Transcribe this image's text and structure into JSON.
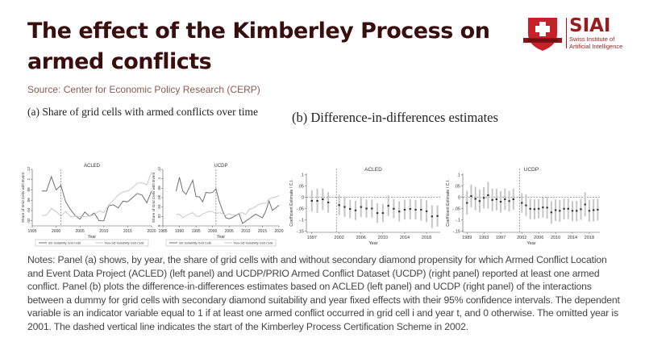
{
  "header": {
    "title": "The effect of the Kimberley Process on armed conflicts",
    "source": "Source: Center for Economic Policy Research (CERP)"
  },
  "logo": {
    "name": "SIAI",
    "subtitle_line1": "Swiss Institute of",
    "subtitle_line2": "Artificial Intelligence",
    "brand_color": "#9b1c1f"
  },
  "panels": {
    "a_title": "(a) Share of grid cells with armed conflicts over time",
    "b_title": "(b) Difference-in-differences estimates"
  },
  "notes": "Notes: Panel (a) shows, by year, the share of grid cells with and without secondary diamond propensity for which Armed Conflict Location and Event Data Project (ACLED) (left panel) and UCDP/PRIO Armed Conflict Dataset (UCDP) (right panel) reported at least one armed conflict. Panel (b) plots the difference-in-differences estimates based on ACLED (left panel) and UCDP (right panel) of the interactions between a dummy for grid cells with secondary diamond suitability and year fixed effects with their 95% confidence intervals. The dependent variable is an indicator variable equal to 1 if at least one armed conflict occurred in grid cell i and year t, and 0 otherwise. The omitted year is 2001. The dashed vertical line indicates the start of the Kimberley Process Certification Scheme in 2002.",
  "chart_data": [
    {
      "id": "acled_share",
      "type": "line",
      "title": "ACLED",
      "xlabel": "Year",
      "ylabel": "Share of Grid Cells with Event",
      "xlim": [
        1995,
        2020
      ],
      "ylim": [
        0.01,
        0.12
      ],
      "xticks": [
        1995,
        2000,
        2005,
        2010,
        2015,
        2020
      ],
      "yticks": [
        ".02",
        ".04",
        ".06",
        ".08",
        ".1",
        ".12"
      ],
      "ytick_values": [
        0.02,
        0.04,
        0.06,
        0.08,
        0.1,
        0.12
      ],
      "vline": 2001,
      "legend": "bottom",
      "series": [
        {
          "name": "SD Suitability Grid Cells",
          "color": "#707070",
          "x": [
            1997,
            1998,
            1999,
            2000,
            2001,
            2002,
            2003,
            2004,
            2005,
            2006,
            2007,
            2008,
            2009,
            2010,
            2011,
            2012,
            2013,
            2014,
            2015,
            2016,
            2017,
            2018,
            2019,
            2020
          ],
          "values": [
            0.078,
            0.078,
            0.106,
            0.08,
            0.089,
            0.057,
            0.042,
            0.03,
            0.023,
            0.037,
            0.029,
            0.035,
            0.02,
            0.02,
            0.049,
            0.051,
            0.045,
            0.058,
            0.057,
            0.065,
            0.073,
            0.07,
            0.055,
            0.078
          ]
        },
        {
          "name": "Non-SD Suitability Grid Cells",
          "color": "#c8c8c8",
          "x": [
            1997,
            1998,
            1999,
            2000,
            2001,
            2002,
            2003,
            2004,
            2005,
            2006,
            2007,
            2008,
            2009,
            2010,
            2011,
            2012,
            2013,
            2014,
            2015,
            2016,
            2017,
            2018,
            2019,
            2020
          ],
          "values": [
            0.03,
            0.031,
            0.044,
            0.038,
            0.029,
            0.038,
            0.028,
            0.029,
            0.028,
            0.028,
            0.029,
            0.032,
            0.039,
            0.036,
            0.05,
            0.06,
            0.07,
            0.076,
            0.078,
            0.084,
            0.093,
            0.094,
            0.09,
            0.114
          ]
        }
      ]
    },
    {
      "id": "ucdp_share",
      "type": "line",
      "title": "UCDP",
      "xlabel": "Year",
      "ylabel": "Share of Grid Cells with Event",
      "xlim": [
        1985,
        2020
      ],
      "ylim": [
        0,
        0.12
      ],
      "xticks": [
        1985,
        1990,
        1995,
        2000,
        2005,
        2010,
        2015,
        2020
      ],
      "yticks": [
        "0",
        ".02",
        ".04",
        ".06",
        ".08",
        ".1",
        ".12"
      ],
      "ytick_values": [
        0,
        0.02,
        0.04,
        0.06,
        0.08,
        0.1,
        0.12
      ],
      "vline": 2001,
      "legend": "bottom",
      "series": [
        {
          "name": "SD Suitability Grid Cells",
          "color": "#707070",
          "x": [
            1989,
            1990,
            1991,
            1992,
            1993,
            1994,
            1995,
            1996,
            1997,
            1998,
            1999,
            2000,
            2001,
            2002,
            2003,
            2004,
            2005,
            2006,
            2007,
            2008,
            2009,
            2010,
            2011,
            2012,
            2013,
            2014,
            2015,
            2016,
            2017,
            2018,
            2019,
            2020
          ],
          "values": [
            0.074,
            0.103,
            0.074,
            0.067,
            0.082,
            0.097,
            0.062,
            0.062,
            0.051,
            0.071,
            0.07,
            0.071,
            0.079,
            0.052,
            0.032,
            0.017,
            0.015,
            0.018,
            0.022,
            0.026,
            0.005,
            0.01,
            0.015,
            0.02,
            0.025,
            0.021,
            0.017,
            0.031,
            0.053,
            0.033,
            0.038,
            0.044
          ]
        },
        {
          "name": "Non-SD Suitability Grid Cells",
          "color": "#c8c8c8",
          "x": [
            1989,
            1990,
            1991,
            1992,
            1993,
            1994,
            1995,
            1996,
            1997,
            1998,
            1999,
            2000,
            2001,
            2002,
            2003,
            2004,
            2005,
            2006,
            2007,
            2008,
            2009,
            2010,
            2011,
            2012,
            2013,
            2014,
            2015,
            2016,
            2017,
            2018,
            2019,
            2020
          ],
          "values": [
            0.024,
            0.025,
            0.017,
            0.022,
            0.025,
            0.028,
            0.021,
            0.02,
            0.025,
            0.028,
            0.031,
            0.03,
            0.026,
            0.028,
            0.026,
            0.022,
            0.026,
            0.023,
            0.023,
            0.027,
            0.028,
            0.024,
            0.035,
            0.037,
            0.041,
            0.046,
            0.048,
            0.048,
            0.057,
            0.06,
            0.061,
            0.065
          ]
        }
      ]
    },
    {
      "id": "acled_did",
      "type": "scatter",
      "title": "ACLED",
      "xlabel": "Year",
      "ylabel": "Coefficient Estimate / C.I.",
      "xlim": [
        1996,
        2020.5
      ],
      "ylim": [
        -0.155,
        0.105
      ],
      "xticks": [
        1997,
        2002,
        2006,
        2010,
        2014,
        2018
      ],
      "yticks": [
        "-.15",
        "-.1",
        "-.05",
        "0",
        ".05",
        ".1"
      ],
      "ytick_values": [
        -0.15,
        -0.1,
        -0.05,
        0,
        0.05,
        0.1
      ],
      "vline": 2001.5,
      "hline": 0,
      "x": [
        1997,
        1998,
        1999,
        2000,
        2002,
        2003,
        2004,
        2005,
        2006,
        2007,
        2008,
        2009,
        2010,
        2011,
        2012,
        2013,
        2014,
        2015,
        2016,
        2017,
        2018,
        2019,
        2020
      ],
      "estimates": [
        -0.016,
        -0.016,
        -0.009,
        -0.023,
        -0.035,
        -0.043,
        -0.052,
        -0.058,
        -0.043,
        -0.05,
        -0.05,
        -0.07,
        -0.07,
        -0.038,
        -0.051,
        -0.063,
        -0.055,
        -0.052,
        -0.055,
        -0.055,
        -0.062,
        -0.085,
        -0.083
      ],
      "ci_low": [
        -0.063,
        -0.07,
        -0.057,
        -0.068,
        -0.08,
        -0.087,
        -0.093,
        -0.1,
        -0.087,
        -0.09,
        -0.09,
        -0.113,
        -0.11,
        -0.083,
        -0.093,
        -0.107,
        -0.098,
        -0.097,
        -0.098,
        -0.103,
        -0.11,
        -0.137,
        -0.13
      ],
      "ci_high": [
        0.031,
        0.038,
        0.039,
        0.023,
        0.011,
        0.003,
        -0.011,
        -0.016,
        0.003,
        -0.01,
        -0.01,
        -0.027,
        -0.03,
        0.008,
        -0.009,
        -0.018,
        -0.011,
        -0.008,
        -0.012,
        -0.007,
        -0.013,
        -0.035,
        -0.036
      ]
    },
    {
      "id": "ucdp_did",
      "type": "scatter",
      "title": "UCDP",
      "xlabel": "Year",
      "ylabel": "Coefficient Estimate / C.I.",
      "xlim": [
        1988,
        2020.5
      ],
      "ylim": [
        -0.155,
        0.105
      ],
      "xticks": [
        1989,
        1993,
        1997,
        2002,
        2006,
        2010,
        2014,
        2018
      ],
      "yticks": [
        "-.15",
        "-.1",
        "-.05",
        "0",
        ".05",
        ".1"
      ],
      "ytick_values": [
        -0.15,
        -0.1,
        -0.05,
        0,
        0.05,
        0.1
      ],
      "vline": 2001.5,
      "hline": 0,
      "x": [
        1989,
        1990,
        1991,
        1992,
        1993,
        1994,
        1995,
        1996,
        1997,
        1998,
        1999,
        2000,
        2002,
        2003,
        2004,
        2005,
        2006,
        2007,
        2008,
        2009,
        2010,
        2011,
        2012,
        2013,
        2014,
        2015,
        2016,
        2017,
        2018,
        2019,
        2020
      ],
      "estimates": [
        -0.025,
        0.005,
        -0.007,
        -0.017,
        -0.003,
        0.009,
        -0.012,
        -0.009,
        -0.02,
        -0.009,
        -0.017,
        -0.009,
        -0.025,
        -0.036,
        -0.051,
        -0.053,
        -0.051,
        -0.045,
        -0.046,
        -0.067,
        -0.057,
        -0.06,
        -0.051,
        -0.051,
        -0.06,
        -0.06,
        -0.053,
        -0.032,
        -0.06,
        -0.057,
        -0.055
      ],
      "ci_low": [
        -0.077,
        -0.045,
        -0.058,
        -0.067,
        -0.05,
        -0.05,
        -0.062,
        -0.058,
        -0.068,
        -0.057,
        -0.063,
        -0.055,
        -0.068,
        -0.083,
        -0.097,
        -0.097,
        -0.094,
        -0.09,
        -0.095,
        -0.117,
        -0.105,
        -0.108,
        -0.098,
        -0.097,
        -0.105,
        -0.105,
        -0.1,
        -0.085,
        -0.108,
        -0.107,
        -0.103
      ],
      "ci_high": [
        0.028,
        0.056,
        0.046,
        0.033,
        0.044,
        0.068,
        0.038,
        0.037,
        0.027,
        0.038,
        0.028,
        0.038,
        0.018,
        0.012,
        -0.007,
        -0.009,
        -0.008,
        -0.002,
        0.003,
        -0.017,
        -0.01,
        -0.012,
        -0.006,
        -0.006,
        -0.017,
        -0.016,
        -0.007,
        0.022,
        -0.013,
        -0.008,
        -0.008
      ]
    }
  ]
}
